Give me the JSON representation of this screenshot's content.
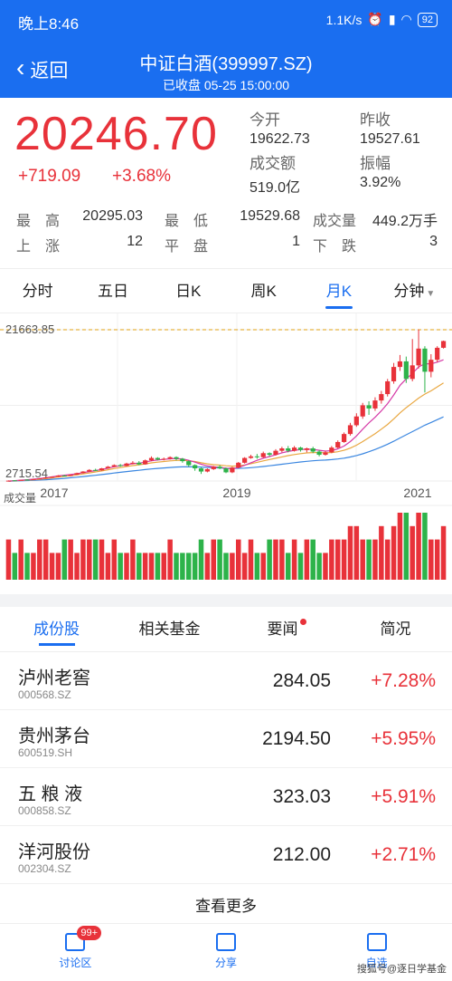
{
  "status": {
    "time": "晚上8:46",
    "net": "1.1K/s",
    "battery": "92",
    "hd": "HD"
  },
  "nav": {
    "back": "返回",
    "title": "中证白酒(399997.SZ)",
    "subtitle": "已收盘 05-25 15:00:00"
  },
  "quote": {
    "price": "20246.70",
    "change": "+719.09",
    "change_pct": "+3.68%",
    "open_label": "今开",
    "open": "19622.73",
    "prev_label": "昨收",
    "prev": "19527.61",
    "turnover_label": "成交额",
    "turnover": "519.0亿",
    "amp_label": "振幅",
    "amp": "3.92%",
    "high_label": "最　高",
    "high": "20295.03",
    "low_label": "最　低",
    "low": "19529.68",
    "vol_label": "成交量",
    "vol": "449.2万手",
    "up_label": "上　涨",
    "up": "12",
    "flat_label": "平　盘",
    "flat": "1",
    "down_label": "下　跌",
    "down": "3"
  },
  "tabs": [
    "分时",
    "五日",
    "日K",
    "周K",
    "月K",
    "分钟"
  ],
  "chart_data": {
    "type": "candlestick",
    "period": "月K",
    "max_label": "21663.85",
    "min_label": "2715.54",
    "x_ticks": [
      "2017",
      "2019",
      "2021"
    ],
    "volume_label": "成交量",
    "colors": {
      "up": "#e8323a",
      "down": "#2db34a",
      "ma1": "#d63aa7",
      "ma2": "#e9a740",
      "ma3": "#3a86e0",
      "ref": "#e0a010"
    },
    "candles": [
      [
        2715,
        2760,
        2700,
        2790,
        1
      ],
      [
        2760,
        2800,
        2740,
        2830,
        0
      ],
      [
        2800,
        2850,
        2780,
        2880,
        1
      ],
      [
        2850,
        2900,
        2830,
        2930,
        0
      ],
      [
        2900,
        2960,
        2880,
        3000,
        1
      ],
      [
        2960,
        3050,
        2940,
        3080,
        1
      ],
      [
        3050,
        3150,
        3020,
        3200,
        1
      ],
      [
        3150,
        3250,
        3120,
        3300,
        1
      ],
      [
        3250,
        3400,
        3200,
        3450,
        1
      ],
      [
        3400,
        3350,
        3300,
        3480,
        0
      ],
      [
        3350,
        3500,
        3330,
        3560,
        1
      ],
      [
        3500,
        3700,
        3480,
        3760,
        1
      ],
      [
        3700,
        3900,
        3650,
        3950,
        1
      ],
      [
        3900,
        4100,
        3880,
        4200,
        1
      ],
      [
        4100,
        4050,
        3980,
        4250,
        0
      ],
      [
        4050,
        4300,
        4000,
        4350,
        1
      ],
      [
        4300,
        4500,
        4250,
        4600,
        1
      ],
      [
        4500,
        4700,
        4450,
        4800,
        1
      ],
      [
        4700,
        4600,
        4500,
        4850,
        0
      ],
      [
        4600,
        4900,
        4550,
        5000,
        1
      ],
      [
        4900,
        5000,
        4800,
        5200,
        1
      ],
      [
        5000,
        4800,
        4700,
        5200,
        0
      ],
      [
        4800,
        5300,
        4750,
        5400,
        1
      ],
      [
        5300,
        5600,
        5200,
        5800,
        1
      ],
      [
        5600,
        5400,
        5300,
        5700,
        0
      ],
      [
        5400,
        5500,
        5300,
        5650,
        1
      ],
      [
        5500,
        5700,
        5400,
        5800,
        1
      ],
      [
        5700,
        5500,
        5300,
        5800,
        0
      ],
      [
        5500,
        5200,
        5000,
        5600,
        0
      ],
      [
        5200,
        4700,
        4500,
        5300,
        0
      ],
      [
        4700,
        4300,
        4000,
        4800,
        0
      ],
      [
        4300,
        3900,
        3600,
        4400,
        0
      ],
      [
        3900,
        4200,
        3800,
        4300,
        1
      ],
      [
        4200,
        4500,
        4100,
        4600,
        1
      ],
      [
        4500,
        4300,
        4200,
        4700,
        0
      ],
      [
        4300,
        3800,
        3700,
        4400,
        0
      ],
      [
        3800,
        4400,
        3700,
        4500,
        1
      ],
      [
        4400,
        5000,
        4300,
        5100,
        1
      ],
      [
        5000,
        5600,
        4900,
        5700,
        1
      ],
      [
        5600,
        5800,
        5500,
        6000,
        1
      ],
      [
        5800,
        5700,
        5500,
        6100,
        0
      ],
      [
        5700,
        6200,
        5600,
        6400,
        1
      ],
      [
        6200,
        6000,
        5800,
        6300,
        0
      ],
      [
        6000,
        6500,
        5900,
        6700,
        1
      ],
      [
        6500,
        6800,
        6300,
        7000,
        1
      ],
      [
        6800,
        6500,
        6300,
        7100,
        0
      ],
      [
        6500,
        6900,
        6400,
        7100,
        1
      ],
      [
        6900,
        6600,
        6400,
        7000,
        0
      ],
      [
        6600,
        6800,
        6300,
        6900,
        1
      ],
      [
        6800,
        6400,
        6200,
        7000,
        0
      ],
      [
        6400,
        6000,
        5800,
        6600,
        0
      ],
      [
        6000,
        6300,
        5900,
        6500,
        1
      ],
      [
        6300,
        6900,
        6200,
        7100,
        1
      ],
      [
        6900,
        7600,
        6800,
        7800,
        1
      ],
      [
        7600,
        8600,
        7500,
        8800,
        1
      ],
      [
        8600,
        9700,
        8400,
        10000,
        1
      ],
      [
        9700,
        10800,
        9500,
        11200,
        1
      ],
      [
        10800,
        12200,
        10500,
        12500,
        1
      ],
      [
        12200,
        11800,
        11000,
        12700,
        0
      ],
      [
        11800,
        12800,
        11500,
        13200,
        1
      ],
      [
        12800,
        13600,
        12400,
        14000,
        1
      ],
      [
        13600,
        15200,
        13300,
        15500,
        1
      ],
      [
        15200,
        17000,
        14900,
        17500,
        1
      ],
      [
        17000,
        17700,
        16500,
        18500,
        1
      ],
      [
        17700,
        15500,
        15000,
        18300,
        0
      ],
      [
        15500,
        17200,
        15200,
        20500,
        1
      ],
      [
        17200,
        19300,
        16800,
        21700,
        1
      ],
      [
        19300,
        16400,
        13800,
        19600,
        0
      ],
      [
        16400,
        17900,
        15700,
        18600,
        1
      ],
      [
        17900,
        19400,
        17600,
        19600,
        1
      ],
      [
        19400,
        20246,
        19300,
        20300,
        1
      ]
    ],
    "ma": {
      "ma1": [
        2700,
        2760,
        2820,
        2880,
        2940,
        3020,
        3120,
        3230,
        3350,
        3440,
        3520,
        3620,
        3760,
        3900,
        4020,
        4160,
        4320,
        4500,
        4620,
        4760,
        4880,
        4950,
        5080,
        5250,
        5350,
        5420,
        5500,
        5520,
        5480,
        5300,
        5080,
        4820,
        4600,
        4480,
        4420,
        4300,
        4260,
        4400,
        4680,
        5000,
        5300,
        5560,
        5780,
        6000,
        6240,
        6420,
        6560,
        6650,
        6700,
        6680,
        6560,
        6460,
        6520,
        6740,
        7100,
        7650,
        8350,
        9200,
        10000,
        10700,
        11500,
        12400,
        13500,
        14700,
        15500,
        16200,
        17000,
        17400,
        17400,
        17600,
        17900
      ],
      "ma2": [
        2700,
        2740,
        2780,
        2830,
        2880,
        2940,
        3010,
        3100,
        3200,
        3290,
        3380,
        3480,
        3600,
        3730,
        3850,
        3980,
        4120,
        4270,
        4400,
        4530,
        4650,
        4750,
        4860,
        4980,
        5080,
        5160,
        5240,
        5290,
        5300,
        5250,
        5150,
        5000,
        4860,
        4760,
        4700,
        4620,
        4580,
        4600,
        4720,
        4880,
        5050,
        5230,
        5400,
        5560,
        5730,
        5890,
        6030,
        6140,
        6230,
        6280,
        6280,
        6260,
        6280,
        6380,
        6560,
        6830,
        7200,
        7650,
        8150,
        8650,
        9200,
        9800,
        10500,
        11250,
        11900,
        12500,
        13100,
        13600,
        14000,
        14500,
        15000
      ],
      "ma3": [
        2690,
        2710,
        2740,
        2770,
        2800,
        2840,
        2880,
        2930,
        2990,
        3050,
        3120,
        3190,
        3270,
        3350,
        3430,
        3520,
        3610,
        3710,
        3800,
        3890,
        3980,
        4060,
        4140,
        4220,
        4290,
        4350,
        4410,
        4460,
        4490,
        4500,
        4490,
        4460,
        4420,
        4380,
        4350,
        4320,
        4300,
        4300,
        4330,
        4380,
        4450,
        4530,
        4620,
        4710,
        4810,
        4910,
        5010,
        5100,
        5180,
        5250,
        5300,
        5340,
        5390,
        5470,
        5580,
        5720,
        5900,
        6120,
        6380,
        6660,
        6980,
        7320,
        7700,
        8100,
        8500,
        8900,
        9300,
        9700,
        10050,
        10400,
        10750
      ]
    },
    "volumes": [
      3,
      2,
      3,
      2,
      2,
      3,
      3,
      2,
      2,
      3,
      3,
      2,
      3,
      3,
      3,
      3,
      2,
      3,
      2,
      2,
      3,
      2,
      2,
      2,
      2,
      2,
      3,
      2,
      2,
      2,
      2,
      3,
      2,
      3,
      3,
      2,
      2,
      3,
      2,
      3,
      2,
      2,
      3,
      3,
      3,
      2,
      3,
      2,
      3,
      3,
      2,
      2,
      3,
      3,
      3,
      4,
      4,
      3,
      3,
      3,
      4,
      3,
      4,
      5,
      5,
      4,
      5,
      5,
      3,
      3,
      4
    ]
  },
  "subtabs": [
    "成份股",
    "相关基金",
    "要闻",
    "简况"
  ],
  "stocks": [
    {
      "name": "泸州老窖",
      "code": "000568.SZ",
      "price": "284.05",
      "pct": "+7.28%"
    },
    {
      "name": "贵州茅台",
      "code": "600519.SH",
      "price": "2194.50",
      "pct": "+5.95%"
    },
    {
      "name": "五 粮 液",
      "code": "000858.SZ",
      "price": "323.03",
      "pct": "+5.91%"
    },
    {
      "name": "洋河股份",
      "code": "002304.SZ",
      "price": "212.00",
      "pct": "+2.71%"
    }
  ],
  "more": "查看更多",
  "bottom": {
    "discuss": "讨论区",
    "badge": "99+",
    "share": "分享",
    "add": "自选"
  },
  "watermark": "搜狐号@逐日学基金"
}
